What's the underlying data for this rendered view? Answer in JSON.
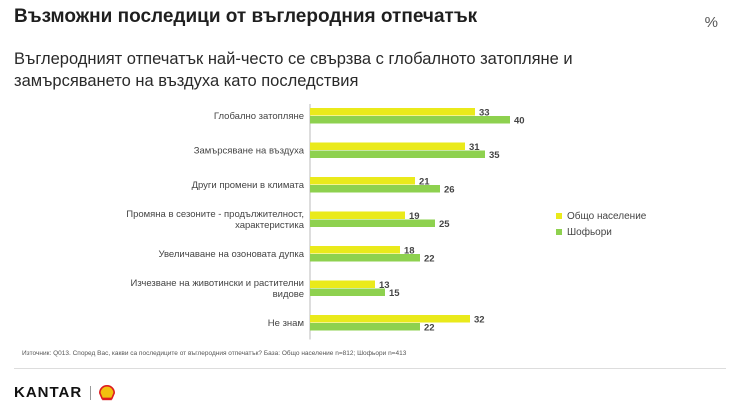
{
  "title": "Възможни последици от въглеродния отпечатък",
  "subtitle": "Въглеродният отпечатък най-често се свързва с глобалното затопляне и замърсяването на въздуха като последствия",
  "unit_label": "%",
  "source": "Източник: Q013. Според Вас, какви са последиците от въглеродния отпечатък? База: Общо население n=812; Шофьори n=413",
  "brand": {
    "kantar": "KANTAR",
    "partner_logo": "shell-logo"
  },
  "colors": {
    "general": "#eaea1b",
    "drivers": "#8ed14f"
  },
  "chart_data": {
    "type": "bar",
    "orientation": "horizontal",
    "categories": [
      [
        "Глобално затопляне"
      ],
      [
        "Замърсяване на въздуха"
      ],
      [
        "Други промени в климата"
      ],
      [
        "Промяна в сезоните - продължителност,",
        "характеристика"
      ],
      [
        "Увеличаване на озоновата дупка"
      ],
      [
        "Изчезване на животински и растителни",
        "видове"
      ],
      [
        "Не знам"
      ]
    ],
    "series": [
      {
        "name": "Общо население",
        "values": [
          33,
          31,
          21,
          19,
          18,
          13,
          32
        ]
      },
      {
        "name": "Шофьори",
        "values": [
          40,
          35,
          26,
          25,
          22,
          15,
          22
        ]
      }
    ],
    "xlim": [
      0,
      40
    ],
    "grid": false,
    "legend_position": "right"
  }
}
